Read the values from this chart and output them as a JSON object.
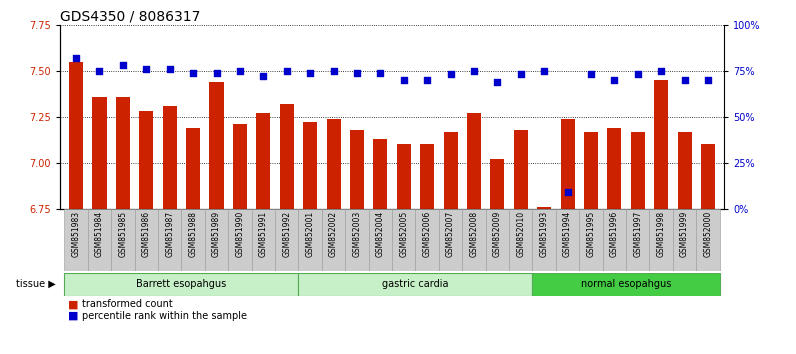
{
  "title": "GDS4350 / 8086317",
  "samples": [
    "GSM851983",
    "GSM851984",
    "GSM851985",
    "GSM851986",
    "GSM851987",
    "GSM851988",
    "GSM851989",
    "GSM851990",
    "GSM851991",
    "GSM851992",
    "GSM852001",
    "GSM852002",
    "GSM852003",
    "GSM852004",
    "GSM852005",
    "GSM852006",
    "GSM852007",
    "GSM852008",
    "GSM852009",
    "GSM852010",
    "GSM851993",
    "GSM851994",
    "GSM851995",
    "GSM851996",
    "GSM851997",
    "GSM851998",
    "GSM851999",
    "GSM852000"
  ],
  "bar_values": [
    7.55,
    7.36,
    7.36,
    7.28,
    7.31,
    7.19,
    7.44,
    7.21,
    7.27,
    7.32,
    7.22,
    7.24,
    7.18,
    7.13,
    7.1,
    7.1,
    7.17,
    7.27,
    7.02,
    7.18,
    6.76,
    7.24,
    7.17,
    7.19,
    7.17,
    7.45,
    7.17,
    7.1
  ],
  "percentile_values": [
    82,
    75,
    78,
    76,
    76,
    74,
    74,
    75,
    72,
    75,
    74,
    75,
    74,
    74,
    70,
    70,
    73,
    75,
    69,
    73,
    75,
    9,
    73,
    70,
    73,
    75,
    70,
    70
  ],
  "tissues": [
    {
      "label": "Barrett esopahgus",
      "start": 0,
      "end": 10,
      "color": "#c8f0c8",
      "edgecolor": "#55aa55"
    },
    {
      "label": "gastric cardia",
      "start": 10,
      "end": 20,
      "color": "#c8f0c8",
      "edgecolor": "#55aa55"
    },
    {
      "label": "normal esopahgus",
      "start": 20,
      "end": 28,
      "color": "#44cc44",
      "edgecolor": "#55aa55"
    }
  ],
  "ylim_left": [
    6.75,
    7.75
  ],
  "ylim_right": [
    0,
    100
  ],
  "yticks_left": [
    6.75,
    7.0,
    7.25,
    7.5,
    7.75
  ],
  "yticks_right": [
    0,
    25,
    50,
    75,
    100
  ],
  "bar_color": "#cc2200",
  "dot_color": "#0000cc",
  "background_color": "#ffffff",
  "title_fontsize": 10,
  "tick_fontsize": 7,
  "sample_fontsize": 5.5
}
